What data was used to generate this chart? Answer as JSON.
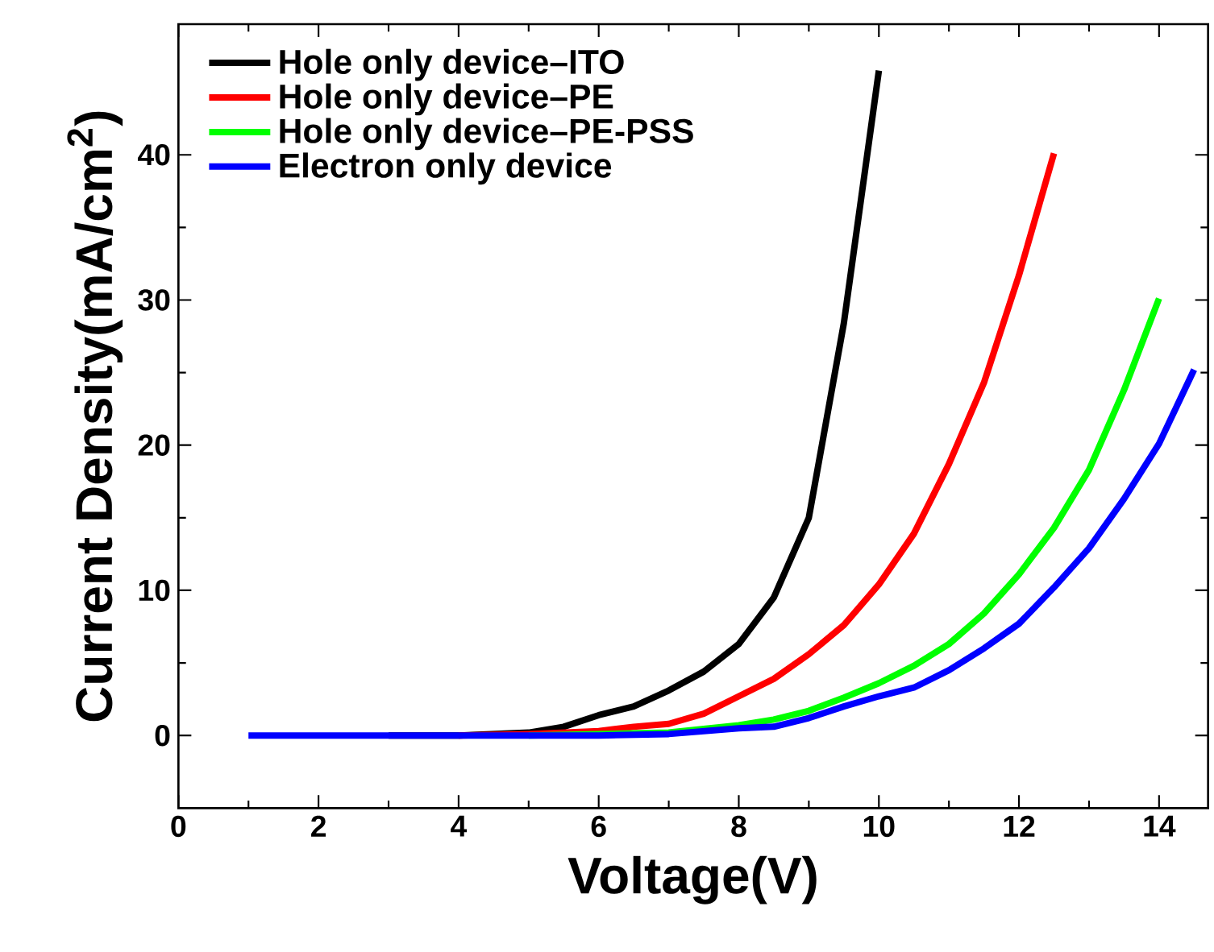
{
  "chart_data": {
    "type": "line",
    "xlabel": "Voltage(V)",
    "ylabel": "Current Density(mA/cm$^{2}$)",
    "xlim": [
      0,
      14.7
    ],
    "ylim": [
      -5,
      49
    ],
    "xticks": [
      0,
      2,
      4,
      6,
      8,
      10,
      12,
      14
    ],
    "yticks": [
      0,
      10,
      20,
      30,
      40
    ],
    "legend": "top left",
    "grid": false,
    "marker": "none",
    "line_style": "solid",
    "series": [
      {
        "name": "Hole only device–ITO",
        "color": "#000000",
        "x": [
          3,
          4,
          5,
          5.5,
          6,
          6.5,
          7,
          7.5,
          8,
          8.5,
          9,
          9.5,
          10
        ],
        "values": [
          0,
          0,
          0.2,
          0.6,
          1.4,
          2.0,
          3.1,
          4.4,
          6.3,
          9.5,
          15,
          28.4,
          45.8
        ]
      },
      {
        "name": "Hole only device–PE",
        "color": "#ff0000",
        "x": [
          4,
          5,
          6,
          6.5,
          7,
          7.5,
          8,
          8.5,
          9,
          9.5,
          10,
          10.5,
          11,
          11.5,
          12,
          12.5
        ],
        "values": [
          0,
          0.1,
          0.3,
          0.6,
          0.8,
          1.5,
          2.7,
          3.9,
          5.6,
          7.6,
          10.4,
          13.9,
          18.7,
          24.3,
          31.7,
          40.1
        ]
      },
      {
        "name": "Hole only device–PE-PSS",
        "color": "#00ff00",
        "x": [
          5,
          6,
          7,
          8,
          8.5,
          9,
          9.5,
          10,
          10.5,
          11,
          11.5,
          12,
          12.5,
          13,
          13.5,
          14
        ],
        "values": [
          0,
          0.1,
          0.2,
          0.7,
          1.1,
          1.7,
          2.6,
          3.6,
          4.8,
          6.3,
          8.4,
          11.1,
          14.3,
          18.3,
          23.8,
          30.1
        ]
      },
      {
        "name": "Electron only device",
        "color": "#0000ff",
        "x": [
          1,
          2,
          3,
          4,
          5,
          6,
          7,
          8,
          8.5,
          9,
          9.5,
          10,
          10.5,
          11,
          11.5,
          12,
          12.5,
          13,
          13.5,
          14,
          14.5
        ],
        "values": [
          0,
          0,
          0,
          0,
          0,
          0,
          0.1,
          0.5,
          0.6,
          1.2,
          2.0,
          2.7,
          3.3,
          4.5,
          6.0,
          7.7,
          10.2,
          12.9,
          16.3,
          20.1,
          25.2
        ]
      }
    ]
  }
}
